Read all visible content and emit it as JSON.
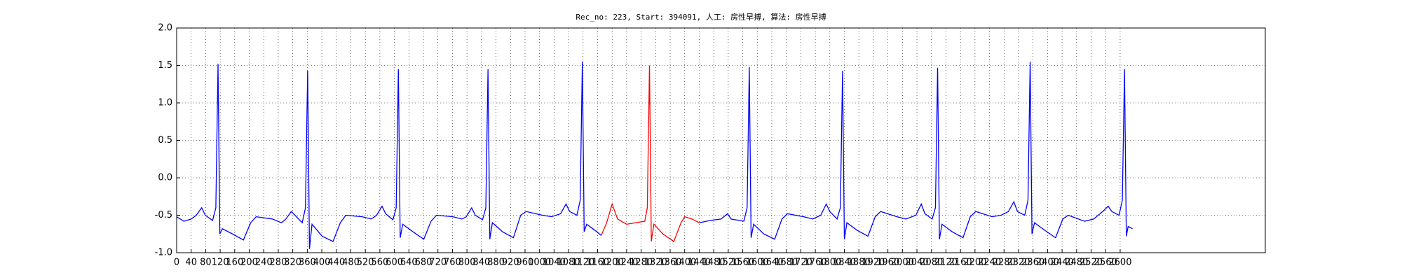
{
  "chart_data": {
    "type": "line",
    "title": "Rec_no: 223, Start: 394091, 人工: 房性早搏, 算法: 房性早搏",
    "xlim": [
      0,
      3000
    ],
    "xticks": [
      0,
      40,
      80,
      120,
      160,
      200,
      240,
      280,
      320,
      360,
      400,
      440,
      480,
      520,
      560,
      600,
      640,
      680,
      720,
      760,
      800,
      840,
      880,
      920,
      960,
      1000,
      1040,
      1080,
      1120,
      1160,
      1200,
      1240,
      1280,
      1320,
      1360,
      1400,
      1440,
      1480,
      1520,
      1560,
      1600,
      1640,
      1680,
      1720,
      1760,
      1800,
      1840,
      1880,
      1920,
      1960,
      2000,
      2040,
      2080,
      2120,
      2160,
      2200,
      2240,
      2280,
      2320,
      2360,
      2400,
      2440,
      2480,
      2520,
      2560,
      2600
    ],
    "ylim": [
      -1,
      2
    ],
    "yticks": [
      {
        "value": -1,
        "label": "-1.0"
      },
      -0.5,
      {
        "value": 0,
        "label": "0.0"
      },
      0.5,
      {
        "value": 1,
        "label": "1.0"
      },
      1.5,
      {
        "value": 2,
        "label": "2.0"
      }
    ],
    "grid": true,
    "series": [
      {
        "color": "#0000ff",
        "x": [
          0,
          20,
          40,
          54,
          69,
          79,
          99,
          108,
          114,
          119,
          126,
          154,
          184,
          204,
          219,
          264,
          289,
          301,
          316,
          326,
          346,
          355,
          361,
          366,
          373,
          401,
          431,
          451,
          466,
          511,
          536,
          551,
          566,
          576,
          596,
          605,
          611,
          616,
          623,
          651,
          681,
          701,
          716,
          761,
          786,
          798,
          813,
          823,
          843,
          852,
          858,
          863,
          870,
          898,
          928,
          948,
          963,
          1008,
          1033,
          1058,
          1073,
          1083,
          1103,
          1112,
          1118,
          1123,
          1130,
          1158,
          1170,
          1300,
          1440,
          1470,
          1500,
          1518,
          1528,
          1563,
          1572,
          1578,
          1583,
          1590,
          1618,
          1648,
          1668,
          1683,
          1728,
          1753,
          1775,
          1790,
          1800,
          1820,
          1829,
          1835,
          1840,
          1847,
          1875,
          1905,
          1925,
          1940,
          1985,
          2010,
          2037,
          2052,
          2062,
          2082,
          2091,
          2097,
          2102,
          2109,
          2137,
          2167,
          2187,
          2202,
          2247,
          2272,
          2292,
          2307,
          2317,
          2337,
          2346,
          2352,
          2357,
          2364,
          2392,
          2422,
          2442,
          2457,
          2502,
          2527,
          2552,
          2567,
          2577,
          2597,
          2606,
          2612,
          2617,
          2622,
          2634
        ],
        "values": [
          -0.52,
          -0.58,
          -0.55,
          -0.5,
          -0.4,
          -0.5,
          -0.57,
          -0.4,
          1.52,
          -0.75,
          -0.68,
          -0.75,
          -0.83,
          -0.6,
          -0.52,
          -0.55,
          -0.6,
          -0.55,
          -0.45,
          -0.5,
          -0.6,
          -0.4,
          1.43,
          -0.95,
          -0.62,
          -0.78,
          -0.85,
          -0.6,
          -0.5,
          -0.52,
          -0.55,
          -0.5,
          -0.38,
          -0.48,
          -0.56,
          -0.4,
          1.45,
          -0.8,
          -0.62,
          -0.72,
          -0.82,
          -0.58,
          -0.5,
          -0.52,
          -0.55,
          -0.52,
          -0.4,
          -0.5,
          -0.56,
          -0.4,
          1.45,
          -0.82,
          -0.6,
          -0.72,
          -0.8,
          -0.5,
          -0.45,
          -0.5,
          -0.52,
          -0.48,
          -0.35,
          -0.45,
          -0.5,
          -0.3,
          1.55,
          -0.72,
          -0.62,
          -0.72,
          -0.77,
          null,
          -0.6,
          -0.57,
          -0.55,
          -0.48,
          -0.55,
          -0.58,
          -0.4,
          1.48,
          -0.8,
          -0.62,
          -0.75,
          -0.82,
          -0.55,
          -0.48,
          -0.52,
          -0.55,
          -0.5,
          -0.35,
          -0.45,
          -0.55,
          -0.4,
          1.43,
          -0.82,
          -0.6,
          -0.7,
          -0.78,
          -0.52,
          -0.45,
          -0.52,
          -0.55,
          -0.5,
          -0.35,
          -0.48,
          -0.55,
          -0.4,
          1.47,
          -0.82,
          -0.62,
          -0.72,
          -0.8,
          -0.52,
          -0.45,
          -0.52,
          -0.5,
          -0.45,
          -0.32,
          -0.45,
          -0.5,
          -0.3,
          1.55,
          -0.75,
          -0.6,
          -0.7,
          -0.8,
          -0.55,
          -0.5,
          -0.58,
          -0.55,
          -0.45,
          -0.38,
          -0.45,
          -0.5,
          -0.3,
          1.45,
          -0.78,
          -0.65,
          -0.68
        ]
      },
      {
        "color": "#ff0000",
        "x": [
          1170,
          1185,
          1200,
          1215,
          1240,
          1290,
          1297,
          1303,
          1308,
          1315,
          1340,
          1370,
          1390,
          1400,
          1420,
          1440
        ],
        "values": [
          -0.77,
          -0.6,
          -0.35,
          -0.55,
          -0.62,
          -0.58,
          -0.4,
          1.5,
          -0.85,
          -0.62,
          -0.75,
          -0.85,
          -0.6,
          -0.52,
          -0.55,
          -0.6
        ]
      }
    ]
  }
}
